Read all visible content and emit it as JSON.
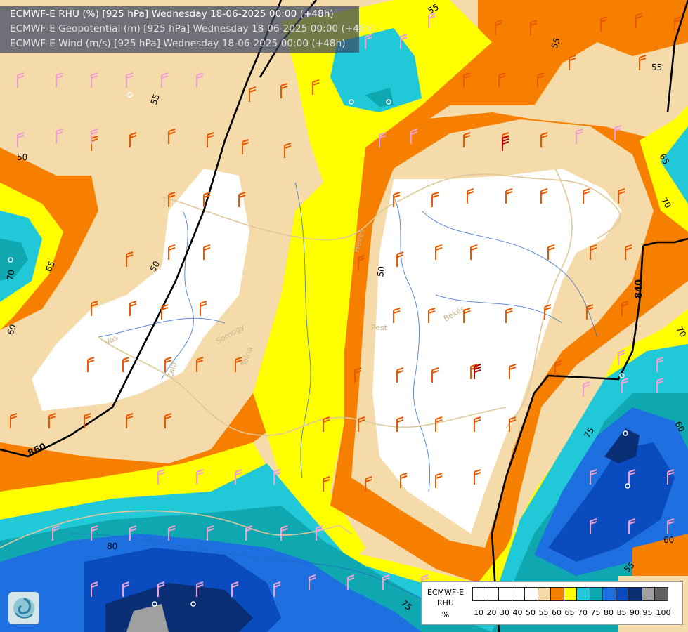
{
  "titles": [
    "ECMWF-E RHU (%) [925 hPa] Wednesday 18-06-2025 00:00 (+48h)",
    "ECMWF-E Geopotential (m) [925 hPa] Wednesday 18-06-2025 00:00 (+48h)",
    "ECMWF-E Wind (m/s) [925 hPa] Wednesday 18-06-2025 00:00 (+48h)"
  ],
  "legend": {
    "model": "ECMWF-E",
    "variable": "RHU",
    "unit": "%",
    "ticks": [
      "10",
      "20",
      "30",
      "40",
      "50",
      "55",
      "60",
      "65",
      "70",
      "75",
      "80",
      "85",
      "90",
      "95",
      "100"
    ],
    "colors": [
      "#ffffff",
      "#ffffff",
      "#ffffff",
      "#ffffff",
      "#ffffff",
      "#f5dbaa",
      "#f77f00",
      "#ffff00",
      "#20c8d8",
      "#10a8b0",
      "#1e6fe0",
      "#0a4cc0",
      "#0a2f75",
      "#a0a0a0",
      "#606060"
    ]
  },
  "contour_labels": [
    "55",
    "55",
    "55",
    "55",
    "50",
    "50",
    "65",
    "70",
    "60",
    "65",
    "70",
    "60",
    "75",
    "70",
    "55",
    "60",
    "80",
    "75",
    "50",
    "860",
    "840"
  ],
  "place_labels": [
    "Vas",
    "Zala",
    "Somogy",
    "Tolna",
    "Pest",
    "Heves",
    "Békés"
  ],
  "map": {
    "colors": {
      "tan": "#f5dbaa",
      "orange": "#f77f00",
      "yellow": "#ffff00",
      "cyan": "#20c8d8",
      "teal": "#10a8b0",
      "blue": "#1e6fe0",
      "dark_blue": "#0a4cc0",
      "navy": "#0a2f75",
      "white": "#ffffff",
      "grey": "#a0a0a0",
      "geopotential_line": "#000000",
      "border": "#e0c89a",
      "river": "#2a64c8",
      "wind_orange": "#e85a00",
      "wind_pink": "#f0a0d0",
      "wind_red": "#b00000"
    }
  }
}
